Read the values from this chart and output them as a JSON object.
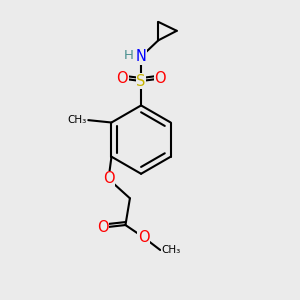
{
  "bg_color": "#ebebeb",
  "bond_color": "#000000",
  "bond_lw": 1.5,
  "atom_colors": {
    "S": "#c8b400",
    "O": "#ff0000",
    "N": "#0000ff",
    "H": "#4a9090",
    "C": "#000000"
  },
  "font_size": 9.5
}
